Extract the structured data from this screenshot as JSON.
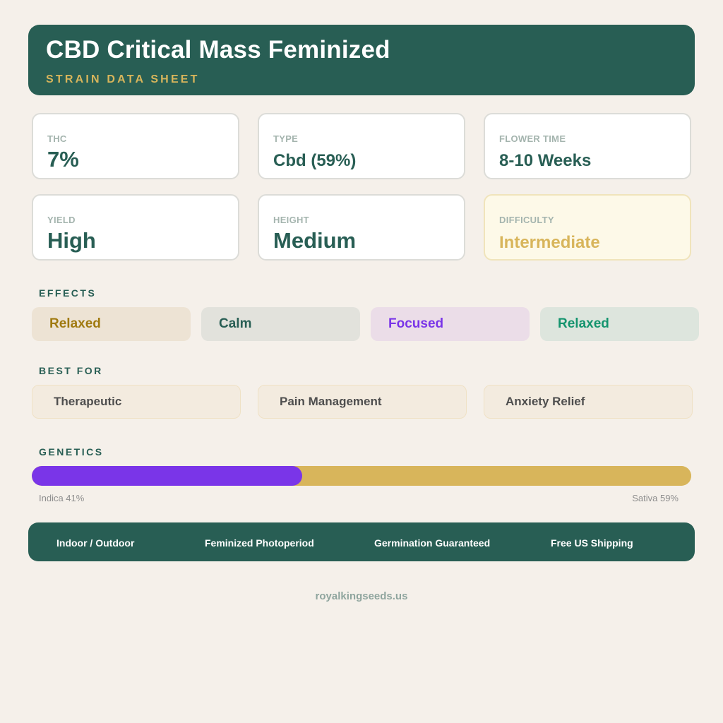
{
  "header": {
    "title": "CBD Critical Mass Feminized",
    "subtitle": "STRAIN DATA SHEET"
  },
  "stats": {
    "thc": {
      "label": "THC",
      "value": "7%"
    },
    "type": {
      "label": "TYPE",
      "value": "Cbd (59%)"
    },
    "flower_time": {
      "label": "FLOWER TIME",
      "value": "8-10 Weeks"
    },
    "yield": {
      "label": "YIELD",
      "value": "High"
    },
    "height": {
      "label": "HEIGHT",
      "value": "Medium"
    },
    "difficulty": {
      "label": "DIFFICULTY",
      "value": "Intermediate"
    }
  },
  "effects": {
    "heading": "EFFECTS",
    "items": [
      {
        "label": "Relaxed",
        "bg": "#ede3d4",
        "color": "#a07a10"
      },
      {
        "label": "Calm",
        "bg": "#e2e2dc",
        "color": "#285e54"
      },
      {
        "label": "Focused",
        "bg": "#ebdde8",
        "color": "#7a35e8"
      },
      {
        "label": "Relaxed",
        "bg": "#dde5dd",
        "color": "#14946e"
      }
    ]
  },
  "best_for": {
    "heading": "BEST FOR",
    "items": [
      "Therapeutic",
      "Pain Management",
      "Anxiety Relief"
    ]
  },
  "genetics": {
    "heading": "GENETICS",
    "indica_label": "Indica 41%",
    "sativa_label": "Sativa 59%",
    "indica_pct": 41,
    "sativa_pct": 59,
    "indica_color": "#7a35e8",
    "sativa_color": "#d8b55b"
  },
  "features": [
    "Indoor / Outdoor",
    "Feminized Photoperiod",
    "Germination Guaranteed",
    "Free US Shipping"
  ],
  "footer": {
    "site": "royalkingseeds.us"
  },
  "colors": {
    "brand": "#285e54",
    "accent": "#d8b55b",
    "background": "#f5f0ea"
  }
}
